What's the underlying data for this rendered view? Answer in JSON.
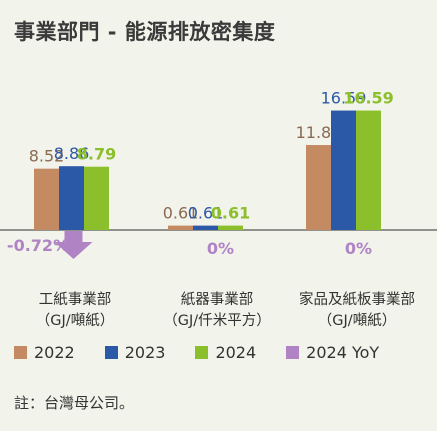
{
  "title": "事業部門 - 能源排放密集度",
  "colors": {
    "y2022": "#c48b63",
    "y2023": "#2c58a8",
    "y2024": "#8cbf2c",
    "yoy": "#b083c4",
    "baseline": "#555555"
  },
  "chart_data": {
    "type": "bar",
    "categories": [
      "工紙事業部",
      "紙器事業部",
      "家品及紙板事業部"
    ],
    "category_units": [
      "（GJ/噸紙）",
      "（GJ/仟米平方）",
      "（GJ/噸紙）"
    ],
    "series": [
      {
        "name": "2022",
        "values": [
          8.52,
          0.61,
          11.8
        ],
        "labels": [
          "8.52",
          "0.61",
          "11.80"
        ]
      },
      {
        "name": "2023",
        "values": [
          8.86,
          0.61,
          16.59
        ],
        "labels": [
          "8.86",
          "0.61",
          "16.59"
        ]
      },
      {
        "name": "2024",
        "values": [
          8.79,
          0.61,
          16.59
        ],
        "labels": [
          "8.79",
          "0.61",
          "16.59"
        ]
      }
    ],
    "yoy": {
      "name": "2024 YoY",
      "values": [
        -0.72,
        0,
        0
      ],
      "labels": [
        "-0.72%",
        "0%",
        "0%"
      ]
    },
    "ylim": [
      0,
      17
    ],
    "grid": false,
    "legend_position": "bottom"
  },
  "legend": [
    "2022",
    "2023",
    "2024",
    "2024 YoY"
  ],
  "note": "註：台灣母公司。"
}
